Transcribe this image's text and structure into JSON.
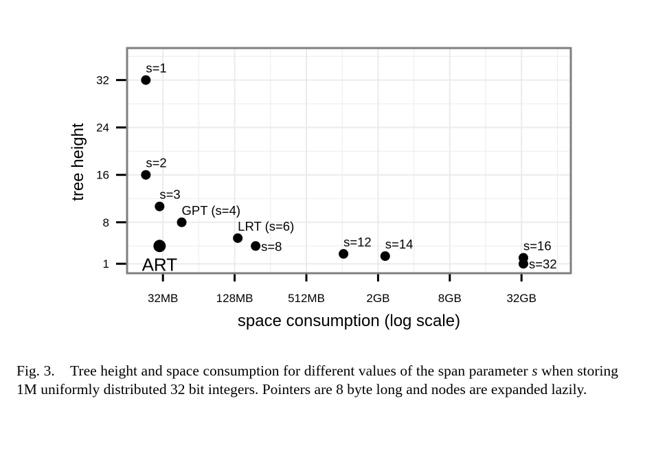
{
  "chart_data": {
    "type": "scatter",
    "title": "",
    "xlabel": "space consumption (log scale)",
    "ylabel": "tree height",
    "x_scale": "log",
    "x_unit": "MB",
    "xlim_mb": [
      16,
      85000
    ],
    "ylim": [
      -0.6,
      37.4
    ],
    "x_ticks": [
      {
        "value": 32,
        "label": "32MB"
      },
      {
        "value": 128,
        "label": "128MB"
      },
      {
        "value": 512,
        "label": "512MB"
      },
      {
        "value": 2048,
        "label": "2GB"
      },
      {
        "value": 8192,
        "label": "8GB"
      },
      {
        "value": 32768,
        "label": "32GB"
      }
    ],
    "y_ticks": [
      {
        "value": 1,
        "label": "1"
      },
      {
        "value": 8,
        "label": "8"
      },
      {
        "value": 16,
        "label": "16"
      },
      {
        "value": 24,
        "label": "24"
      },
      {
        "value": 32,
        "label": "32"
      }
    ],
    "grid": true,
    "points": [
      {
        "label": "s=1",
        "x": 23,
        "y": 32,
        "pos": "above"
      },
      {
        "label": "s=2",
        "x": 23,
        "y": 16,
        "pos": "above"
      },
      {
        "label": "s=3",
        "x": 30,
        "y": 10.67,
        "pos": "above"
      },
      {
        "label": "GPT (s=4)",
        "x": 46,
        "y": 8,
        "pos": "above"
      },
      {
        "label": "LRT (s=6)",
        "x": 136,
        "y": 5.33,
        "pos": "above"
      },
      {
        "label": "s=8",
        "x": 192,
        "y": 4,
        "pos": "right"
      },
      {
        "label": "s=12",
        "x": 1050,
        "y": 2.67,
        "pos": "above"
      },
      {
        "label": "s=14",
        "x": 2350,
        "y": 2.29,
        "pos": "above"
      },
      {
        "label": "s=16",
        "x": 34000,
        "y": 2,
        "pos": "above"
      },
      {
        "label": "s=32",
        "x": 34000,
        "y": 1,
        "pos": "right"
      },
      {
        "label": "ART",
        "x": 30,
        "y": 4,
        "pos": "below",
        "highlight": true
      }
    ]
  },
  "caption": {
    "prefix": "Fig. 3.",
    "text_before": "Tree height and space consumption for different values of the span parameter ",
    "var": "s",
    "text_after": " when storing 1M uniformly distributed 32 bit integers. Pointers are 8 byte long and nodes are expanded lazily."
  },
  "colors": {
    "point": "#000000",
    "grid": "#ebebeb",
    "border": "#7f7f7f"
  }
}
